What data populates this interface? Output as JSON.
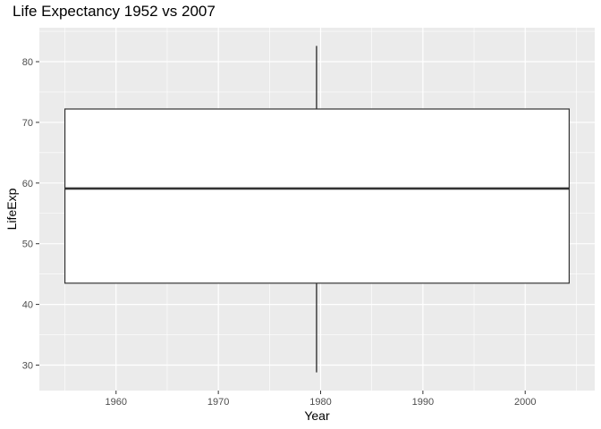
{
  "chart_data": {
    "type": "boxplot",
    "title": "Life Expectancy 1952 vs 2007",
    "xlabel": "Year",
    "ylabel": "LifeExp",
    "xlim": [
      1952.5,
      2006.8
    ],
    "ylim": [
      25.8,
      85.6
    ],
    "x_ticks": [
      1960,
      1970,
      1980,
      1990,
      2000
    ],
    "y_ticks": [
      30,
      40,
      50,
      60,
      70,
      80
    ],
    "grid": true,
    "legend": "none",
    "box": {
      "x_min": 1955,
      "x_max": 2004.3,
      "x_center": 1979.6,
      "whisker_low": 28.8,
      "q1": 43.5,
      "median": 59.1,
      "q3": 72.2,
      "whisker_high": 82.6
    },
    "colors": {
      "panel": "#ebebeb",
      "grid_major": "#ffffff",
      "box_fill": "#ffffff",
      "box_line": "#333333"
    }
  }
}
